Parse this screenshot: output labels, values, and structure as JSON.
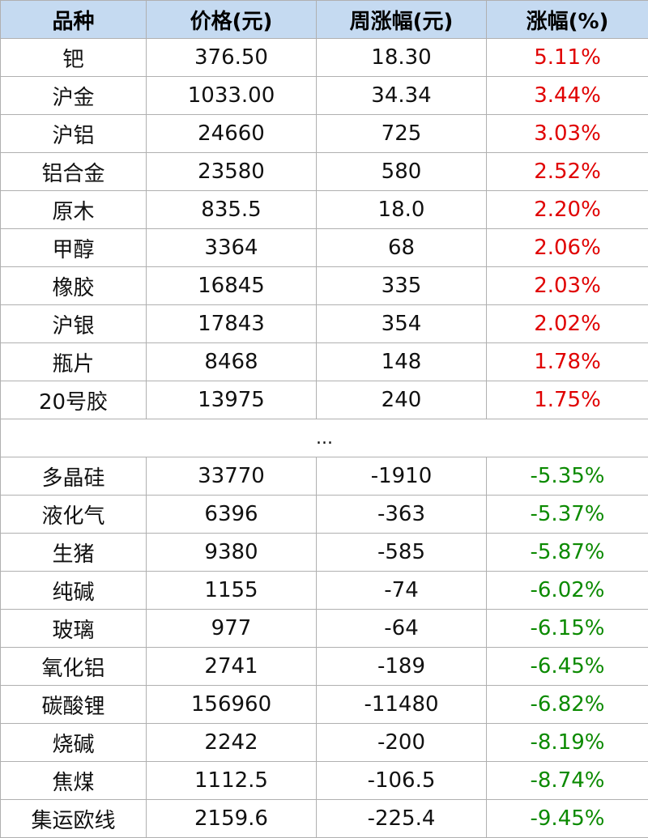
{
  "header": [
    "品种",
    "价格(元)",
    "周涨幅(元)",
    "涨幅(%)"
  ],
  "colors": {
    "header_bg": "#c5daf1",
    "up": "#e00000",
    "down": "#0b8a00"
  },
  "top_rows": [
    {
      "name": "钯",
      "price": "376.50",
      "change": "18.30",
      "pct": "5.11%"
    },
    {
      "name": "沪金",
      "price": "1033.00",
      "change": "34.34",
      "pct": "3.44%"
    },
    {
      "name": "沪铝",
      "price": "24660",
      "change": "725",
      "pct": "3.03%"
    },
    {
      "name": "铝合金",
      "price": "23580",
      "change": "580",
      "pct": "2.52%"
    },
    {
      "name": "原木",
      "price": "835.5",
      "change": "18.0",
      "pct": "2.20%"
    },
    {
      "name": "甲醇",
      "price": "3364",
      "change": "68",
      "pct": "2.06%"
    },
    {
      "name": "橡胶",
      "price": "16845",
      "change": "335",
      "pct": "2.03%"
    },
    {
      "name": "沪银",
      "price": "17843",
      "change": "354",
      "pct": "2.02%"
    },
    {
      "name": "瓶片",
      "price": "8468",
      "change": "148",
      "pct": "1.78%"
    },
    {
      "name": "20号胶",
      "price": "13975",
      "change": "240",
      "pct": "1.75%"
    }
  ],
  "separator": "...",
  "bottom_rows": [
    {
      "name": "多晶硅",
      "price": "33770",
      "change": "-1910",
      "pct": "-5.35%"
    },
    {
      "name": "液化气",
      "price": "6396",
      "change": "-363",
      "pct": "-5.37%"
    },
    {
      "name": "生猪",
      "price": "9380",
      "change": "-585",
      "pct": "-5.87%"
    },
    {
      "name": "纯碱",
      "price": "1155",
      "change": "-74",
      "pct": "-6.02%"
    },
    {
      "name": "玻璃",
      "price": "977",
      "change": "-64",
      "pct": "-6.15%"
    },
    {
      "name": "氧化铝",
      "price": "2741",
      "change": "-189",
      "pct": "-6.45%"
    },
    {
      "name": "碳酸锂",
      "price": "156960",
      "change": "-11480",
      "pct": "-6.82%"
    },
    {
      "name": "烧碱",
      "price": "2242",
      "change": "-200",
      "pct": "-8.19%"
    },
    {
      "name": "焦煤",
      "price": "1112.5",
      "change": "-106.5",
      "pct": "-8.74%"
    },
    {
      "name": "集运欧线",
      "price": "2159.6",
      "change": "-225.4",
      "pct": "-9.45%"
    }
  ]
}
